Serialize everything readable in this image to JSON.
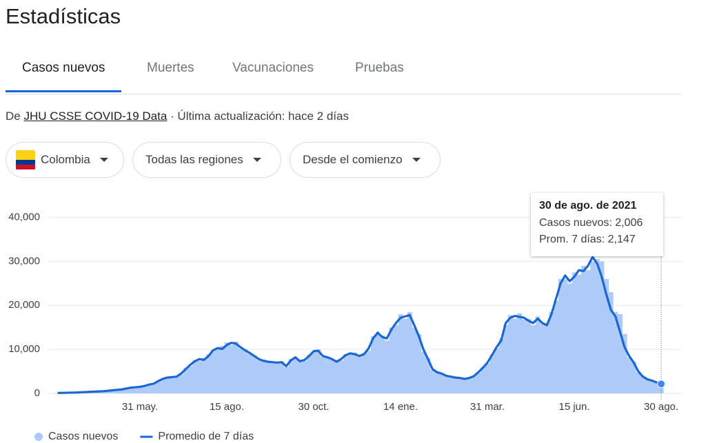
{
  "header": {
    "title": "Estadísticas"
  },
  "tabs": [
    "Casos nuevos",
    "Muertes",
    "Vacunaciones",
    "Pruebas"
  ],
  "active_tab": 0,
  "source": {
    "prefix": "De",
    "link": "JHU CSSE COVID-19 Data",
    "suffix": "· Última actualización: hace 2 días"
  },
  "filters": [
    "Colombia",
    "Todas las regiones",
    "Desde el comienzo"
  ],
  "tooltip": {
    "date": "30 de ago. de 2021",
    "lines": [
      "Casos nuevos: 2,006",
      "Prom. 7 días: 2,147"
    ]
  },
  "chart_data": {
    "type": "combo",
    "categories": [
      null,
      null,
      null,
      null,
      null,
      null,
      null,
      null,
      null,
      null,
      null,
      null,
      null,
      null,
      null,
      null,
      null,
      null,
      "31 may.",
      null,
      null,
      null,
      null,
      null,
      null,
      null,
      null,
      null,
      null,
      null,
      null,
      null,
      null,
      null,
      null,
      null,
      null,
      "15 ago.",
      null,
      null,
      null,
      null,
      null,
      null,
      null,
      null,
      null,
      null,
      null,
      null,
      null,
      null,
      null,
      null,
      null,
      null,
      "30 oct.",
      null,
      null,
      null,
      null,
      null,
      null,
      null,
      null,
      null,
      null,
      null,
      null,
      null,
      null,
      null,
      null,
      null,
      null,
      "14 ene.",
      null,
      null,
      null,
      null,
      null,
      null,
      null,
      null,
      null,
      null,
      null,
      null,
      null,
      null,
      null,
      null,
      null,
      null,
      "31 mar.",
      null,
      null,
      null,
      null,
      null,
      null,
      null,
      null,
      null,
      null,
      null,
      null,
      null,
      null,
      null,
      null,
      null,
      null,
      "15 jun.",
      null,
      null,
      null,
      null,
      null,
      null,
      null,
      null,
      null,
      null,
      null,
      null,
      null,
      null,
      null,
      null,
      null,
      null,
      "30 ago."
    ],
    "series": [
      {
        "name": "Casos nuevos",
        "type": "bar",
        "color": "#aecbfa",
        "values": [
          100,
          150,
          120,
          200,
          180,
          260,
          280,
          380,
          390,
          480,
          520,
          580,
          720,
          760,
          950,
          1050,
          1400,
          1350,
          1600,
          1650,
          2100,
          2150,
          2900,
          3200,
          3800,
          3500,
          4000,
          4300,
          5800,
          6200,
          7600,
          7400,
          8100,
          8900,
          9900,
          10200,
          10800,
          11600,
          11000,
          11800,
          10200,
          10100,
          9000,
          8700,
          7600,
          7700,
          7000,
          7300,
          6800,
          7300,
          6000,
          7800,
          8000,
          7600,
          7400,
          8800,
          9400,
          10000,
          8300,
          8400,
          7600,
          7400,
          7500,
          8900,
          8800,
          9300,
          8300,
          9200,
          9700,
          13000,
          13500,
          13200,
          12000,
          15000,
          15500,
          18000,
          17000,
          18500,
          15000,
          13500,
          9500,
          8000,
          5300,
          5000,
          4300,
          4100,
          3600,
          3700,
          3400,
          3400,
          3400,
          4000,
          4700,
          6000,
          6800,
          8900,
          10200,
          12500,
          15500,
          17800,
          17000,
          18200,
          16800,
          17000,
          15500,
          17500,
          15800,
          16000,
          18500,
          21000,
          26000,
          26000,
          25000,
          27500,
          27000,
          29000,
          28000,
          30000,
          30500,
          30000,
          26000,
          23000,
          18500,
          18000,
          13500,
          8200,
          7200,
          4800,
          4000,
          3100,
          3000,
          2400,
          2006
        ]
      },
      {
        "name": "Promedio de 7 días",
        "type": "line",
        "color": "#1967d2",
        "values": [
          100,
          120,
          150,
          180,
          200,
          250,
          300,
          350,
          400,
          450,
          500,
          600,
          700,
          800,
          900,
          1100,
          1300,
          1400,
          1500,
          1700,
          2000,
          2200,
          2800,
          3300,
          3600,
          3700,
          3800,
          4500,
          5500,
          6500,
          7300,
          7800,
          7600,
          8500,
          9800,
          10300,
          10100,
          11000,
          11500,
          11300,
          10500,
          9800,
          9200,
          8500,
          7800,
          7400,
          7200,
          7100,
          7000,
          7100,
          6200,
          7500,
          8200,
          7300,
          7600,
          8500,
          9600,
          9700,
          8500,
          8200,
          7800,
          7200,
          7800,
          8700,
          9100,
          8900,
          8500,
          8900,
          10200,
          12500,
          13800,
          12800,
          12500,
          14500,
          16000,
          17200,
          17500,
          17800,
          15500,
          13000,
          10000,
          7800,
          5500,
          4800,
          4500,
          4000,
          3800,
          3600,
          3500,
          3300,
          3500,
          3900,
          4800,
          5800,
          7000,
          8700,
          10500,
          12000,
          16000,
          17200,
          17600,
          17400,
          17200,
          16500,
          16000,
          17000,
          16000,
          15500,
          18000,
          21500,
          25000,
          26800,
          25500,
          26500,
          28000,
          27800,
          29000,
          31000,
          29500,
          26500,
          22500,
          19000,
          17500,
          14000,
          10500,
          8500,
          7000,
          5000,
          3800,
          3200,
          2900,
          2500,
          2147
        ]
      }
    ],
    "ylim": [
      0,
      44000
    ],
    "yticks": [
      0,
      {
        "value": 10000,
        "label": "10,000"
      },
      {
        "value": 20000,
        "label": "20,000"
      },
      {
        "value": 30000,
        "label": "30,000"
      },
      {
        "value": 40000,
        "label": "40,000"
      }
    ],
    "grid": true
  }
}
